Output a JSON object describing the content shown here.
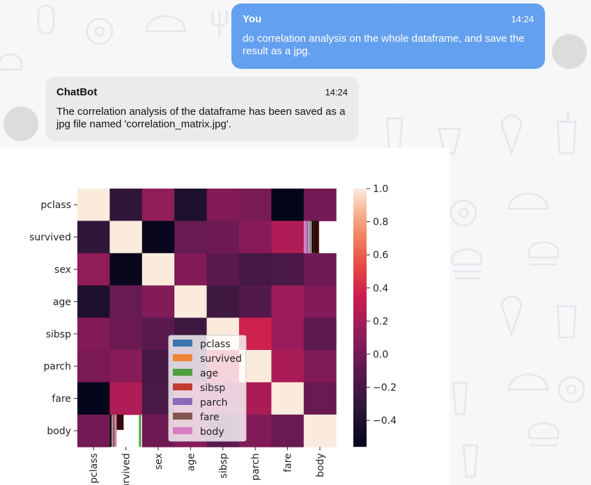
{
  "messages": [
    {
      "sender": "You",
      "time": "14:24",
      "text": "do correlation analysis on the whole dataframe, and save the result as a jpg."
    },
    {
      "sender": "ChatBot",
      "time": "14:24",
      "text": "The correlation analysis of the dataframe has been saved as a jpg file named 'correlation_matrix.jpg'."
    }
  ],
  "colors": {
    "user_bubble": "#64a0f0",
    "bot_bubble": "#ebebeb",
    "avatar": "#dcdcdc"
  },
  "chart_data": {
    "type": "heatmap",
    "title": "",
    "row_labels": [
      "pclass",
      "survived",
      "sex",
      "age",
      "sibsp",
      "parch",
      "fare",
      "body"
    ],
    "col_labels": [
      "pclass",
      "survived",
      "sex",
      "age",
      "sibsp",
      "parch",
      "fare",
      "body"
    ],
    "values": [
      [
        1.0,
        -0.31,
        0.12,
        -0.41,
        0.06,
        0.02,
        -0.56,
        0.0
      ],
      [
        -0.31,
        1.0,
        -0.53,
        -0.05,
        -0.03,
        0.08,
        0.24,
        null
      ],
      [
        0.12,
        -0.53,
        1.0,
        0.06,
        -0.11,
        -0.21,
        -0.19,
        -0.02
      ],
      [
        -0.41,
        -0.05,
        0.06,
        1.0,
        -0.24,
        -0.15,
        0.17,
        0.06
      ],
      [
        0.06,
        -0.03,
        -0.11,
        -0.24,
        1.0,
        0.37,
        0.16,
        -0.1
      ],
      [
        0.02,
        0.08,
        -0.21,
        -0.15,
        0.37,
        1.0,
        0.22,
        0.05
      ],
      [
        -0.56,
        0.24,
        -0.19,
        0.17,
        0.16,
        0.22,
        1.0,
        -0.04
      ],
      [
        0.0,
        null,
        -0.02,
        0.06,
        -0.1,
        0.05,
        -0.04,
        1.0
      ]
    ],
    "colorbar": {
      "range": [
        -0.56,
        1.0
      ],
      "ticks": [
        "1.0",
        "0.8",
        "0.6",
        "0.4",
        "0.2",
        "0.0",
        "−0.2",
        "−0.4"
      ],
      "tick_values": [
        1.0,
        0.8,
        0.6,
        0.4,
        0.2,
        0.0,
        -0.2,
        -0.4
      ]
    },
    "legend": {
      "placement": "lower-center",
      "entries": [
        {
          "label": "pclass",
          "color": "#3b75af"
        },
        {
          "label": "survived",
          "color": "#ef8636"
        },
        {
          "label": "age",
          "color": "#519e3e"
        },
        {
          "label": "sibsp",
          "color": "#c53a32"
        },
        {
          "label": "parch",
          "color": "#8d69b8"
        },
        {
          "label": "fare",
          "color": "#84584e"
        },
        {
          "label": "body",
          "color": "#d57dbf"
        }
      ]
    }
  }
}
